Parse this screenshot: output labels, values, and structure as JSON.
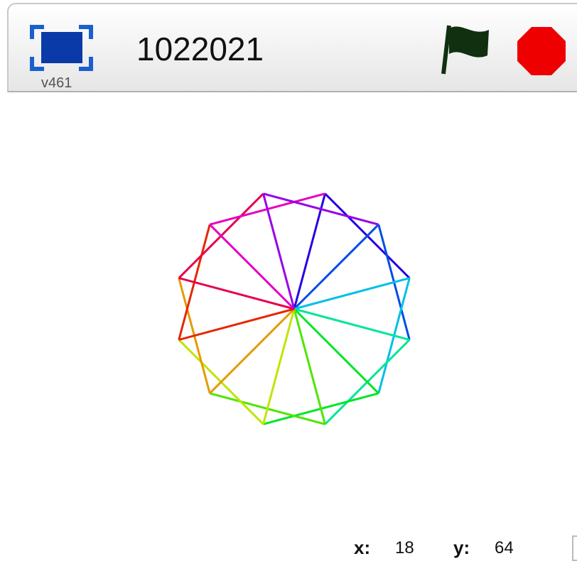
{
  "header": {
    "version": "v461",
    "title": "1022021"
  },
  "footer": {
    "x_label": "x:",
    "x_value": "18",
    "y_label": "y:",
    "y_value": "64"
  }
}
